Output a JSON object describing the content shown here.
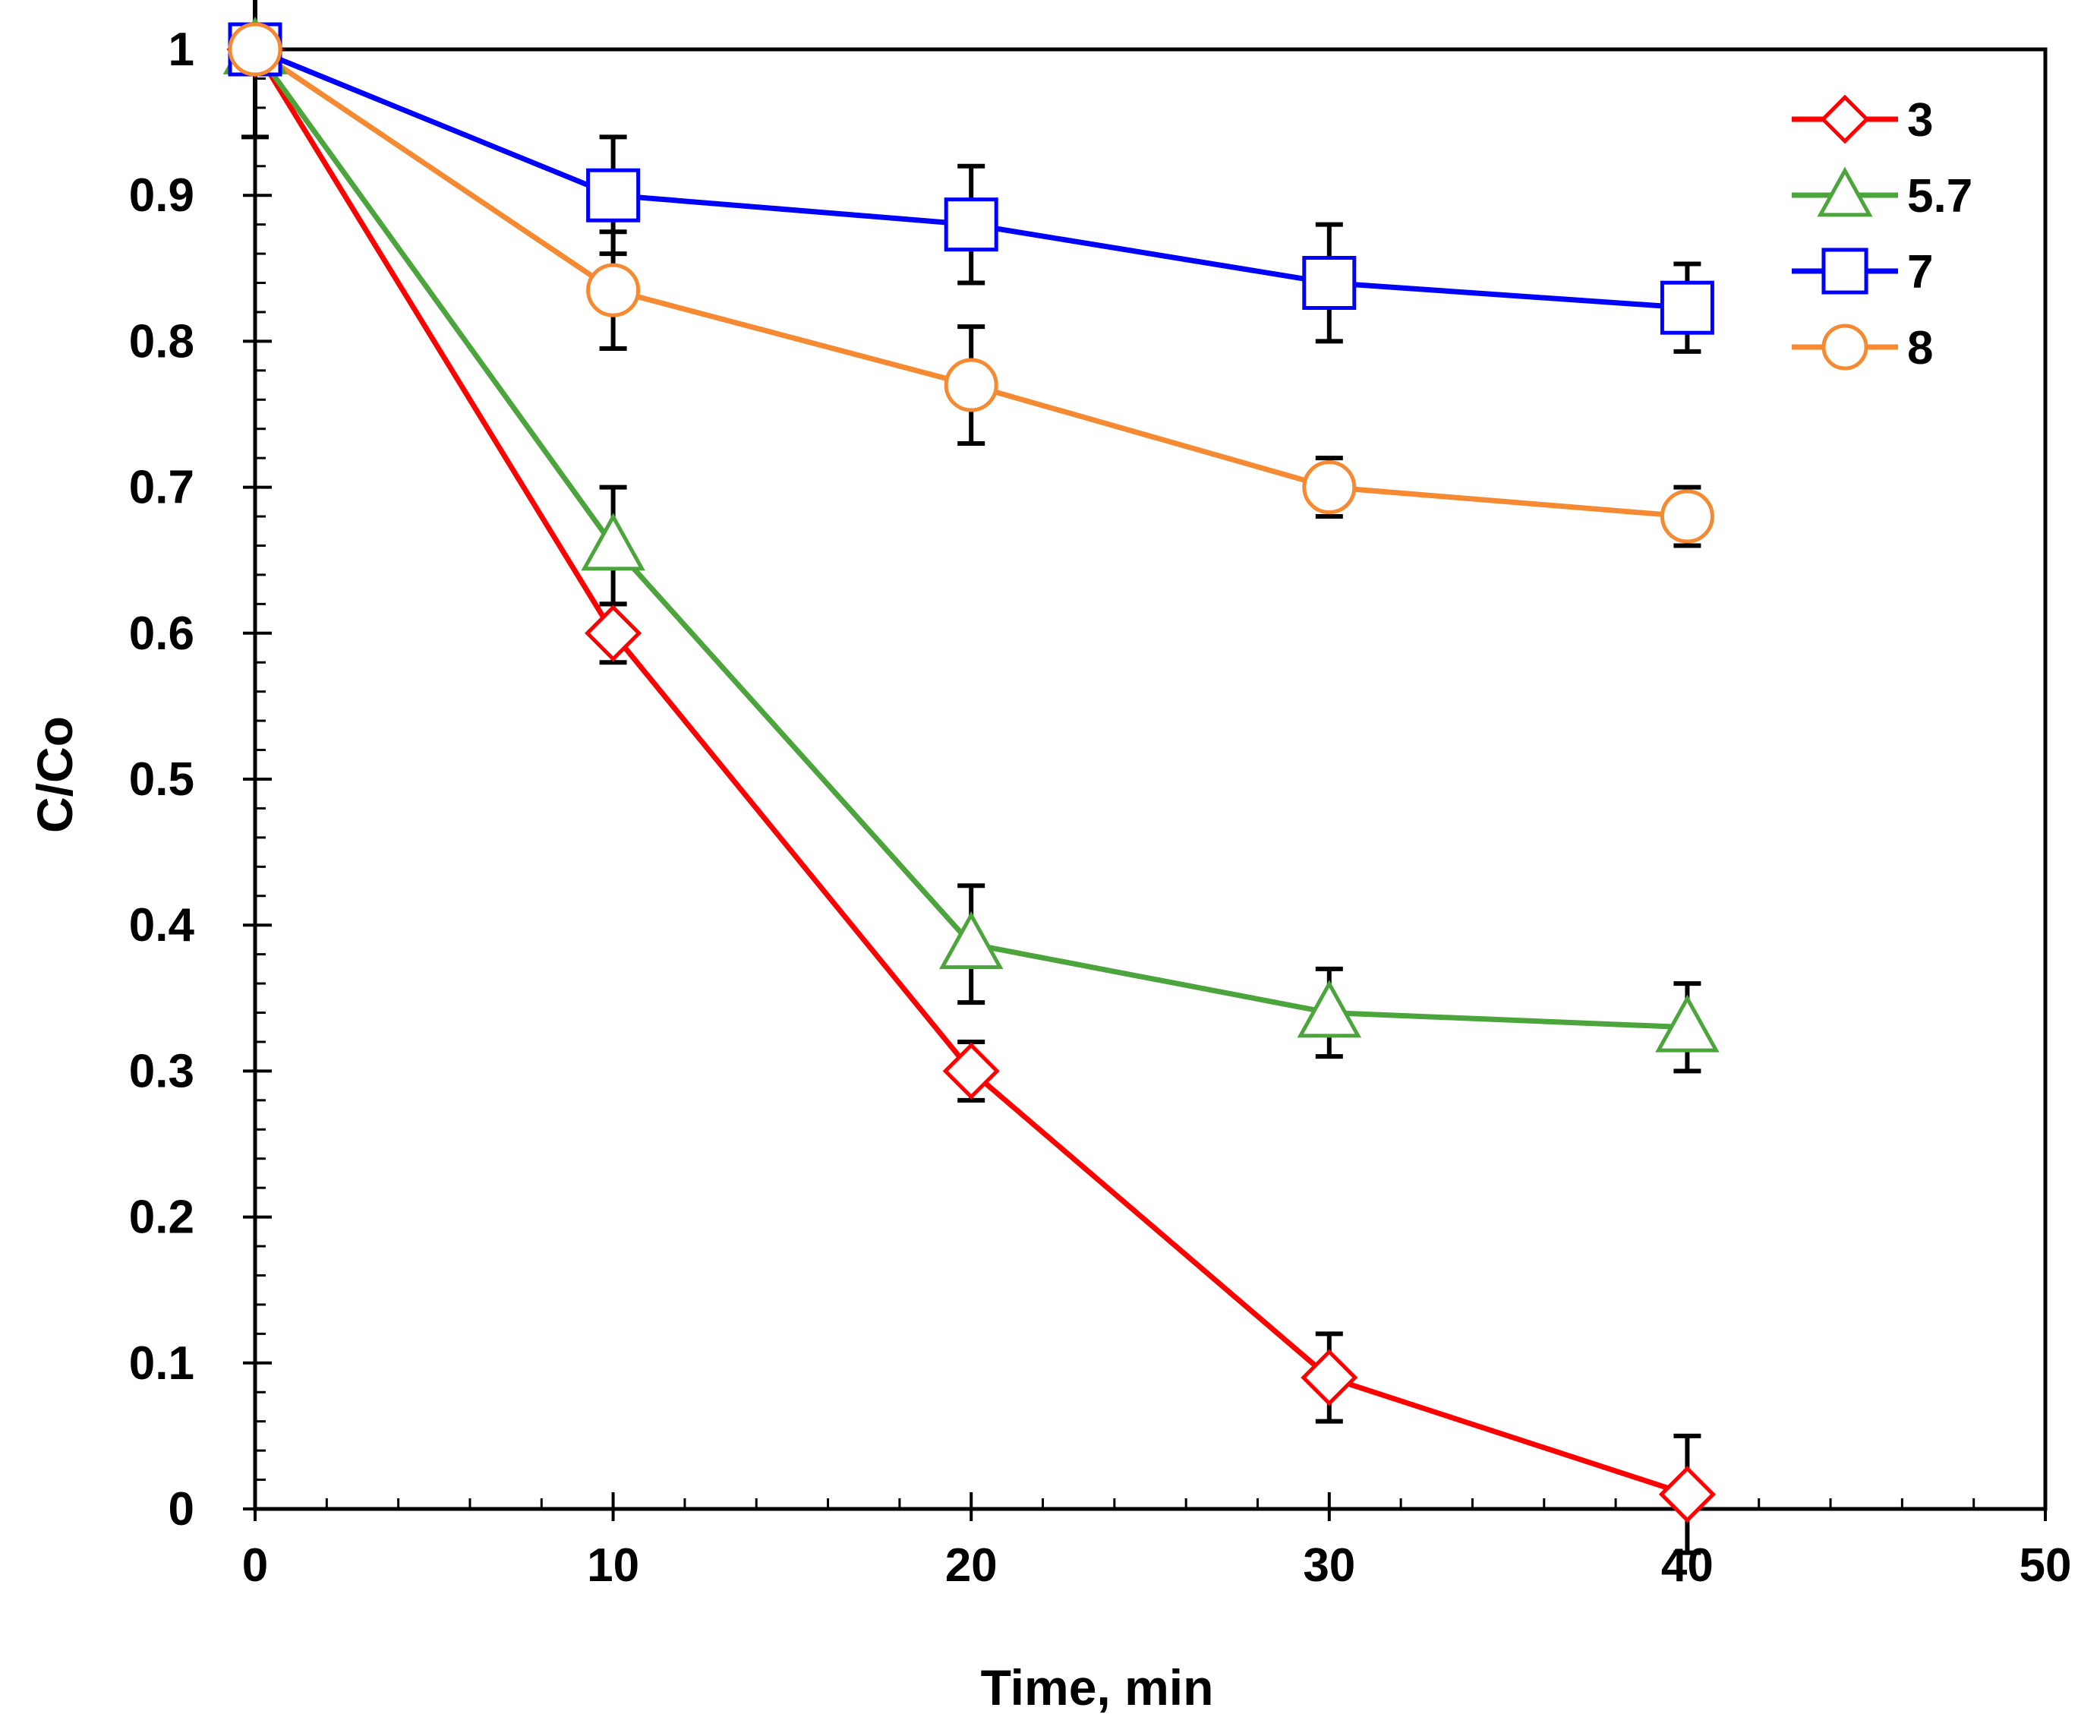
{
  "chart_data": {
    "type": "line",
    "title": "",
    "xlabel": "Time, min",
    "ylabel": "C/Co",
    "xlim": [
      0,
      50
    ],
    "ylim": [
      0,
      1
    ],
    "x_ticks": [
      0,
      10,
      20,
      30,
      40,
      50
    ],
    "x_tick_labels": [
      "0",
      "10",
      "20",
      "30",
      "40",
      "50"
    ],
    "y_ticks": [
      0,
      0.1,
      0.2,
      0.3,
      0.4,
      0.5,
      0.6,
      0.7,
      0.8,
      0.9,
      1
    ],
    "y_tick_labels": [
      "0",
      "0.1",
      "0.2",
      "0.3",
      "0.4",
      "0.5",
      "0.6",
      "0.7",
      "0.8",
      "0.9",
      "1"
    ],
    "x_minor_step": 2,
    "y_minor_step": 0.02,
    "grid": false,
    "legend_position": "top-right",
    "x": [
      0,
      10,
      20,
      30,
      40
    ],
    "series": [
      {
        "name": "3",
        "color": "#ff0000",
        "marker": "diamond",
        "values": [
          1.0,
          0.6,
          0.3,
          0.09,
          0.01
        ],
        "errors": [
          0.06,
          0.02,
          0.02,
          0.03,
          0.04
        ]
      },
      {
        "name": "5.7",
        "color": "#4ca43c",
        "marker": "triangle",
        "values": [
          1.0,
          0.66,
          0.387,
          0.34,
          0.33
        ],
        "errors": [
          0.0,
          0.04,
          0.04,
          0.03,
          0.03
        ]
      },
      {
        "name": "7",
        "color": "#0000ff",
        "marker": "square",
        "values": [
          1.0,
          0.9,
          0.88,
          0.84,
          0.823
        ],
        "errors": [
          0.0,
          0.04,
          0.04,
          0.04,
          0.03
        ]
      },
      {
        "name": "8",
        "color": "#f58a32",
        "marker": "circle",
        "values": [
          1.0,
          0.835,
          0.77,
          0.7,
          0.68
        ],
        "errors": [
          0.0,
          0.04,
          0.04,
          0.02,
          0.02
        ]
      }
    ]
  }
}
